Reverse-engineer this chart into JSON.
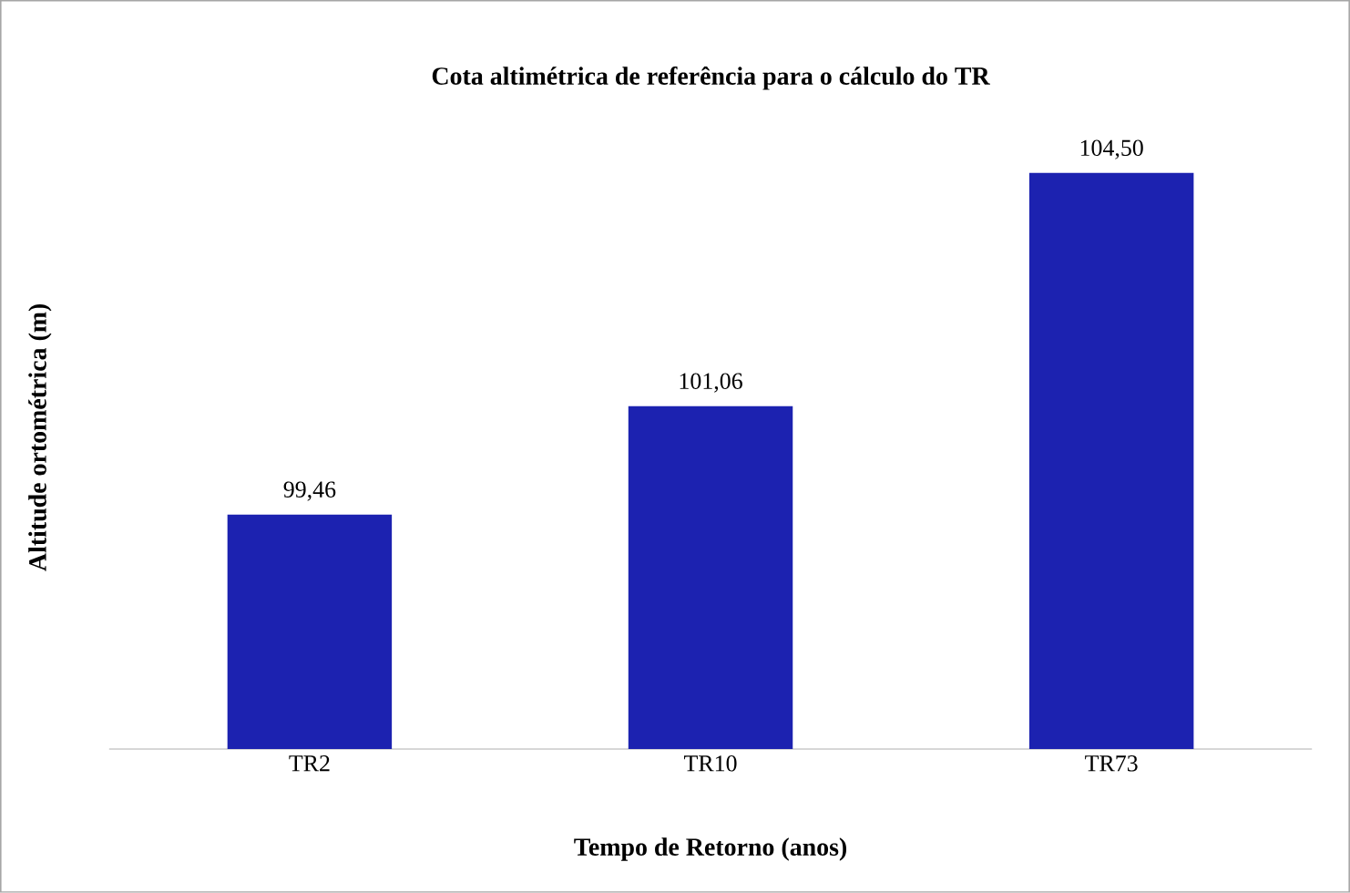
{
  "chart_data": {
    "type": "bar",
    "title": "Cota altimétrica de referência para o cálculo do TR",
    "xlabel": "Tempo de Retorno (anos)",
    "ylabel": "Altitude ortométrica (m)",
    "categories": [
      "TR2",
      "TR10",
      "TR73"
    ],
    "values": [
      99.46,
      101.06,
      104.5
    ],
    "value_labels": [
      "99,46",
      "101,06",
      "104,50"
    ],
    "color": "#1c22b0",
    "ylim": [
      96,
      104.5
    ],
    "tick_labels": "x"
  }
}
